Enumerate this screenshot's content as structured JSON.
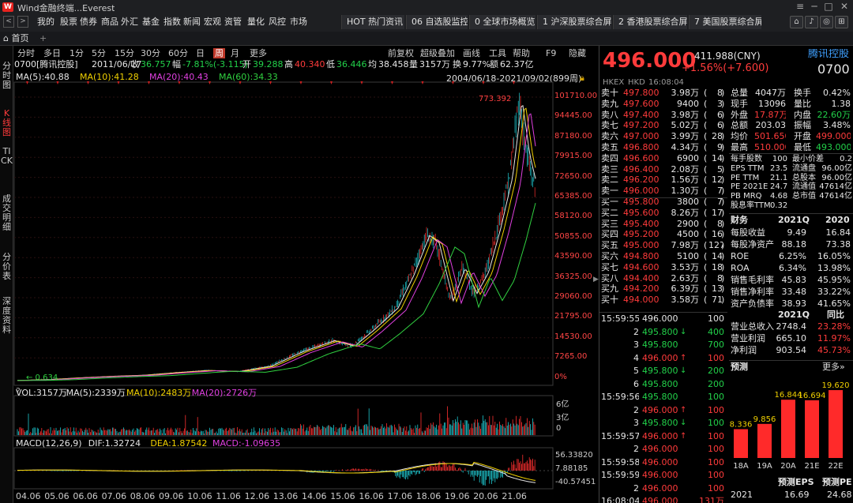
{
  "window": {
    "logo_text": "W",
    "title": "Wind金融终端...Everest"
  },
  "menu": [
    "我的",
    "股票",
    "债券",
    "商品",
    "外汇",
    "基金",
    "指数",
    "新闻",
    "宏观",
    "资管",
    "量化",
    "风控",
    "市场"
  ],
  "quick_tabs": [
    "HOT 热门资讯",
    "06 自选股监控",
    "0 全球市场概览",
    "1 沪深股票综合屏",
    "2 香港股票综合屏",
    "7 美国股票综合屏"
  ],
  "home_tab": "首页",
  "left_nav": [
    {
      "label": "分时图",
      "active": false
    },
    {
      "label": "K线图",
      "active": true
    },
    {
      "label": "TICK",
      "active": false
    },
    {
      "label": "成交明细",
      "active": false
    },
    {
      "label": "分价表",
      "active": false
    },
    {
      "label": "深度资料",
      "active": false
    }
  ],
  "periods": [
    "分时",
    "多日",
    "1分",
    "5分",
    "15分",
    "30分",
    "60分",
    "日",
    "周",
    "月",
    "更多"
  ],
  "active_period": "周",
  "chart_tools": [
    "前复权",
    "超级叠加",
    "画线",
    "工具",
    "帮助",
    "F9",
    "隐藏"
  ],
  "info_bar": {
    "code": "0700[腾讯控股]",
    "date": "2011/06/17",
    "close_label": "收",
    "close": "36.757",
    "chg_label": "幅",
    "chg": "-7.81%(-3.115)",
    "open_label": "开",
    "open": "39.288",
    "high_label": "高",
    "high": "40.340",
    "low_label": "低",
    "low": "36.446",
    "avg_label": "均",
    "avg": "38.458",
    "vol_label": "量",
    "vol": "3157万",
    "turn_label": "换",
    "turn": "9.77%",
    "amt_label": "额",
    "amt": "62.37亿"
  },
  "ma_line": [
    {
      "text": "MA(5):40.88",
      "color": "#e6e6e6"
    },
    {
      "text": "MA(10):41.28",
      "color": "#f0d000"
    },
    {
      "text": "MA(20):40.43",
      "color": "#e040e0"
    },
    {
      "text": "MA(60):34.33",
      "color": "#30d040"
    }
  ],
  "date_range": "2004/06/18-2021/09/02(899周)",
  "price_axis": [
    "101710.00",
    "94445.00",
    "87180.00",
    "79915.00",
    "72650.00",
    "65385.00",
    "58120.00",
    "50855.00",
    "43590.00",
    "36325.00",
    "29060.00",
    "21795.00",
    "14530.00",
    "7265.00",
    "0%"
  ],
  "chart_markers": {
    "high": "773.392",
    "low": "0.634"
  },
  "vol_line": [
    {
      "text": "VOL:3157万",
      "color": "#e6e6e6"
    },
    {
      "text": "MA(5):2339万",
      "color": "#e6e6e6"
    },
    {
      "text": "MA(10):2483万",
      "color": "#f0d000"
    },
    {
      "text": "MA(20):2726万",
      "color": "#e040e0"
    }
  ],
  "vol_axis": [
    "6亿",
    "3亿",
    "0"
  ],
  "macd_line": [
    {
      "text": "MACD(12,26,9)",
      "color": "#e6e6e6"
    },
    {
      "text": "DIF:1.32724",
      "color": "#e6e6e6"
    },
    {
      "text": "DEA:1.87542",
      "color": "#f0d000"
    },
    {
      "text": "MACD:-1.09635",
      "color": "#e040e0"
    }
  ],
  "macd_axis": [
    "56.33820",
    "7.88185",
    "-40.57451"
  ],
  "x_axis": [
    "04.06",
    "05.06",
    "06.06",
    "07.06",
    "08.06",
    "09.06",
    "10.06",
    "11.06",
    "12.06",
    "13.06",
    "14.06",
    "15.06",
    "16.06",
    "17.06",
    "18.06",
    "19.06",
    "20.06",
    "21.06"
  ],
  "chart_data": {
    "type": "candlestick",
    "title": "0700[腾讯控股]",
    "x_range": [
      "2004/06/18",
      "2021/09/02"
    ],
    "y_axis_unit": "%",
    "y_range": [
      0,
      101710
    ],
    "annotated_high": 773.392,
    "annotated_low": 0.634,
    "approx_price_curve": [
      {
        "x": "2004.06",
        "y": 0.634
      },
      {
        "x": "2008.06",
        "y": 30
      },
      {
        "x": "2012.06",
        "y": 40
      },
      {
        "x": "2014.06",
        "y": 110
      },
      {
        "x": "2016.06",
        "y": 170
      },
      {
        "x": "2018.01",
        "y": 460
      },
      {
        "x": "2018.10",
        "y": 280
      },
      {
        "x": "2019.06",
        "y": 350
      },
      {
        "x": "2020.06",
        "y": 480
      },
      {
        "x": "2021.02",
        "y": 773.392
      },
      {
        "x": "2021.09",
        "y": 496
      }
    ]
  },
  "quote": {
    "price": "496.000",
    "prev": "411.988(CNY)",
    "name": "腾讯控股",
    "change": "+1.56%(+7.600)",
    "code": "0700",
    "market": "HKEX",
    "currency": "HKD",
    "time": "16:08:04"
  },
  "order_book": [
    [
      "卖十",
      "497.800",
      "3.98万",
      "8"
    ],
    [
      "卖九",
      "497.600",
      "9400",
      "3"
    ],
    [
      "卖八",
      "497.400",
      "3.98万",
      "6"
    ],
    [
      "卖七",
      "497.200",
      "5.02万",
      "6"
    ],
    [
      "卖六",
      "497.000",
      "3.99万",
      "28"
    ],
    [
      "卖五",
      "496.800",
      "4.34万",
      "9"
    ],
    [
      "卖四",
      "496.600",
      "6900",
      "14"
    ],
    [
      "卖三",
      "496.400",
      "2.08万",
      "5"
    ],
    [
      "卖二",
      "496.200",
      "1.56万",
      "12"
    ],
    [
      "卖一",
      "496.000",
      "1.30万",
      "7"
    ],
    [
      "买一",
      "495.800",
      "3800",
      "7"
    ],
    [
      "买二",
      "495.600",
      "8.26万",
      "17"
    ],
    [
      "买三",
      "495.400",
      "2900",
      "8"
    ],
    [
      "买四",
      "495.200",
      "4500",
      "16"
    ],
    [
      "买五",
      "495.000",
      "7.98万",
      "127"
    ],
    [
      "买六",
      "494.800",
      "5100",
      "14"
    ],
    [
      "买七",
      "494.600",
      "3.53万",
      "18"
    ],
    [
      "买八",
      "494.400",
      "2.63万",
      "8"
    ],
    [
      "买九",
      "494.200",
      "6.39万",
      "13"
    ],
    [
      "买十",
      "494.000",
      "3.58万",
      "71"
    ]
  ],
  "stats": [
    [
      "总量",
      "4047万",
      "换手",
      "0.42%"
    ],
    [
      "现手",
      "13096",
      "量比",
      "1.38"
    ],
    [
      "外盘",
      "17.87万",
      "内盘",
      "22.60万"
    ],
    [
      "总额",
      "203.03",
      "振幅",
      "3.48%"
    ],
    [
      "均价",
      "501.650",
      "开盘",
      "499.000"
    ],
    [
      "最高",
      "510.000",
      "最低",
      "493.000"
    ]
  ],
  "metrics": [
    [
      "每手股数",
      "100",
      "最小价差",
      "0.2"
    ],
    [
      "EPS TTM",
      "23.56",
      "流通盘",
      "96.00亿"
    ],
    [
      "PE TTM",
      "21.1",
      "总股本",
      "96.00亿"
    ],
    [
      "PE 2021E",
      "24.7",
      "流通值",
      "47614亿"
    ],
    [
      "PB MRQ",
      "4.68",
      "总市值",
      "47614亿"
    ],
    [
      "股息率TTM",
      "0.32",
      "",
      ""
    ]
  ],
  "finance": {
    "header": [
      "财务",
      "2021Q",
      "2020"
    ],
    "rows": [
      [
        "每股收益",
        "9.49",
        "16.84"
      ],
      [
        "每股净资产",
        "88.18",
        "73.38"
      ],
      [
        "ROE",
        "6.25%",
        "16.05%"
      ],
      [
        "ROA",
        "6.34%",
        "13.98%"
      ],
      [
        "销售毛利率",
        "45.83",
        "45.95%"
      ],
      [
        "销售净利率",
        "33.48",
        "33.22%"
      ],
      [
        "资产负债率",
        "38.93",
        "41.65%"
      ]
    ]
  },
  "growth": {
    "header": [
      "",
      "2021Q",
      "同比"
    ],
    "rows": [
      [
        "营业总收入",
        "2748.4",
        "23.28%"
      ],
      [
        "营业利润",
        "665.10",
        "11.97%"
      ],
      [
        "净利润",
        "903.54",
        "45.73%"
      ]
    ]
  },
  "ticks": [
    [
      "15:59:55",
      "496.000",
      "",
      "100",
      "wh"
    ],
    [
      "2",
      "495.800",
      "↓",
      "400",
      "dn"
    ],
    [
      "3",
      "495.800",
      "",
      "700",
      "dn"
    ],
    [
      "4",
      "496.000",
      "↑",
      "100",
      "up"
    ],
    [
      "5",
      "495.800",
      "↓",
      "200",
      "dn"
    ],
    [
      "6",
      "495.800",
      "",
      "200",
      "dn"
    ],
    [
      "15:59:56",
      "495.800",
      "",
      "100",
      "dn"
    ],
    [
      "2",
      "496.000",
      "↑",
      "100",
      "up"
    ],
    [
      "3",
      "495.800",
      "↓",
      "100",
      "dn"
    ],
    [
      "15:59:57",
      "496.000",
      "↑",
      "100",
      "up"
    ],
    [
      "2",
      "496.000",
      "",
      "100",
      "up"
    ],
    [
      "15:59:58",
      "496.000",
      "",
      "100",
      "up"
    ],
    [
      "15:59:59",
      "496.000",
      "",
      "100",
      "up"
    ],
    [
      "2",
      "496.000",
      "",
      "100",
      "up"
    ],
    [
      "16:08:04",
      "496.000",
      "",
      "131万",
      "up"
    ]
  ],
  "forecast": {
    "title": "预测",
    "more": "更多»",
    "eps_label": "预测EPS",
    "pe_label": "预测PE",
    "year": "2021",
    "eps_value": "16.69",
    "pe_value": "24.68",
    "bars": [
      {
        "label": "18A",
        "value": 8.336
      },
      {
        "label": "19A",
        "value": 9.856
      },
      {
        "label": "20A",
        "value": 16.844
      },
      {
        "label": "21E",
        "value": 16.694
      },
      {
        "label": "22E",
        "value": 19.62
      }
    ],
    "bar_labels": [
      "8.336",
      "9.856",
      "16.844",
      "16.694",
      "19.620"
    ]
  }
}
